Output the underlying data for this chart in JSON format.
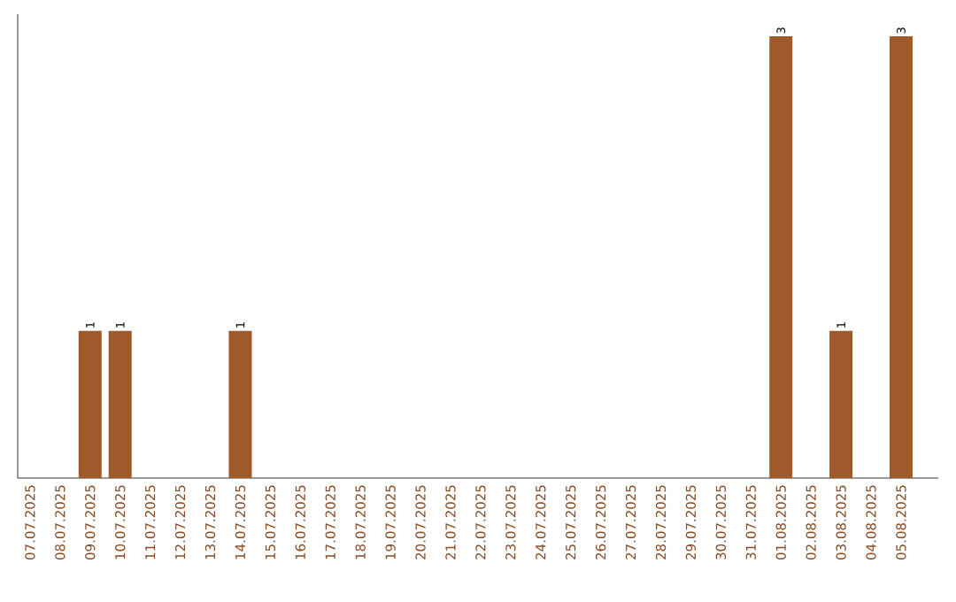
{
  "chart_data": {
    "type": "bar",
    "categories": [
      "07.07.2025",
      "08.07.2025",
      "09.07.2025",
      "10.07.2025",
      "11.07.2025",
      "12.07.2025",
      "13.07.2025",
      "14.07.2025",
      "15.07.2025",
      "16.07.2025",
      "17.07.2025",
      "18.07.2025",
      "19.07.2025",
      "20.07.2025",
      "21.07.2025",
      "22.07.2025",
      "23.07.2025",
      "24.07.2025",
      "25.07.2025",
      "26.07.2025",
      "27.07.2025",
      "28.07.2025",
      "29.07.2025",
      "30.07.2025",
      "31.07.2025",
      "01.08.2025",
      "02.08.2025",
      "03.08.2025",
      "04.08.2025",
      "05.08.2025"
    ],
    "values": [
      0,
      0,
      1,
      1,
      0,
      0,
      0,
      1,
      0,
      0,
      0,
      0,
      0,
      0,
      0,
      0,
      0,
      0,
      0,
      0,
      0,
      0,
      0,
      0,
      0,
      3,
      0,
      1,
      0,
      3
    ],
    "value_labels": [
      null,
      null,
      "1",
      "1",
      null,
      null,
      null,
      "1",
      null,
      null,
      null,
      null,
      null,
      null,
      null,
      null,
      null,
      null,
      null,
      null,
      null,
      null,
      null,
      null,
      null,
      "3",
      null,
      "1",
      null,
      "3"
    ],
    "color": "#a0592a",
    "tick_labels": "x",
    "grid": false
  }
}
